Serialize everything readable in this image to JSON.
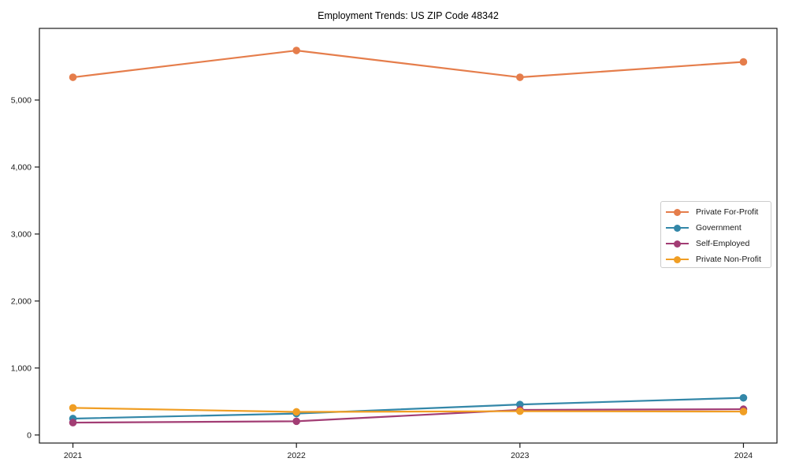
{
  "chart_data": {
    "type": "line",
    "title": "Employment Trends: US ZIP Code 48342",
    "xlabel": "",
    "ylabel": "",
    "x": [
      2021,
      2022,
      2023,
      2024
    ],
    "x_tick_labels": [
      "2021",
      "2022",
      "2023",
      "2024"
    ],
    "y_ticks": [
      0,
      1000,
      2000,
      3000,
      4000,
      5000
    ],
    "y_tick_labels": [
      "0",
      "1,000",
      "2,000",
      "3,000",
      "4,000",
      "5,000"
    ],
    "xlim": [
      2020.85,
      2024.15
    ],
    "ylim": [
      -120,
      6070
    ],
    "grid": false,
    "legend_position": "center right",
    "axis_color": "#1a1a1a",
    "background_color": "#ffffff",
    "series": [
      {
        "name": "Private For-Profit",
        "color": "#E57D4B",
        "values": [
          5340,
          5740,
          5340,
          5570
        ]
      },
      {
        "name": "Government",
        "color": "#3387A8",
        "values": [
          245,
          320,
          455,
          555
        ]
      },
      {
        "name": "Self-Employed",
        "color": "#A23D74",
        "values": [
          185,
          205,
          375,
          385
        ]
      },
      {
        "name": "Private Non-Profit",
        "color": "#F09E24",
        "values": [
          405,
          345,
          355,
          350
        ]
      }
    ]
  }
}
